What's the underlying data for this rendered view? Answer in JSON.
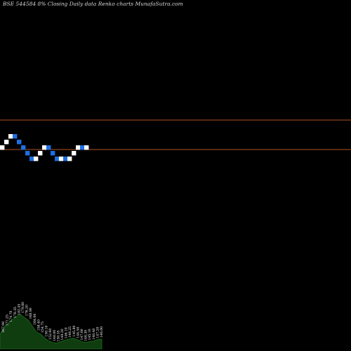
{
  "title": "BSE 544584 8% Closing Daily data Renko charts MunafaSutra.com",
  "chart_data": {
    "type": "renko",
    "colors": {
      "background": "#000000",
      "up_brick": "#ffffff",
      "down_brick": "#1e6fe0",
      "reference_line": "#b0551c",
      "volume_fill": "#0f3d0f",
      "volume_edge": "#1c6d1c"
    },
    "reference_lines": [
      {
        "price": 157.0
      },
      {
        "price": 146.5
      }
    ],
    "bricks": [
      {
        "dir": "up",
        "price": 148
      },
      {
        "dir": "up",
        "price": 150
      },
      {
        "dir": "up",
        "price": 152
      },
      {
        "dir": "down",
        "price": 150
      },
      {
        "dir": "down",
        "price": 148
      },
      {
        "dir": "down",
        "price": 146
      },
      {
        "dir": "down",
        "price": 144
      },
      {
        "dir": "down",
        "price": 142
      },
      {
        "dir": "up",
        "price": 144
      },
      {
        "dir": "up",
        "price": 146
      },
      {
        "dir": "up",
        "price": 148
      },
      {
        "dir": "down",
        "price": 146
      },
      {
        "dir": "down",
        "price": 144
      },
      {
        "dir": "down",
        "price": 142
      },
      {
        "dir": "up",
        "price": 144
      },
      {
        "dir": "down",
        "price": 142
      },
      {
        "dir": "up",
        "price": 144
      },
      {
        "dir": "up",
        "price": 146
      },
      {
        "dir": "up",
        "price": 148
      },
      {
        "dir": "down",
        "price": 146
      },
      {
        "dir": "up",
        "price": 148
      }
    ],
    "volume": {
      "values": [
        30,
        44,
        52,
        60,
        66,
        70,
        64,
        58,
        46,
        34,
        30,
        22,
        16,
        13,
        12,
        15,
        18,
        20,
        22,
        19,
        15,
        13,
        15,
        16,
        19,
        20
      ],
      "labels": [
        "167.08",
        "171.25",
        "174.70",
        "178.35",
        "182.45",
        "179.60",
        "176.20",
        "168.90",
        "164.00",
        "158.40",
        "154.75",
        "150.10",
        "152.60",
        "148.00",
        "150.35",
        "149.20",
        "146.10",
        "148.25",
        "145.80",
        "144.50",
        "147.00",
        "146.30",
        "145.10",
        "148.40",
        "147.20",
        "146.00"
      ]
    }
  }
}
